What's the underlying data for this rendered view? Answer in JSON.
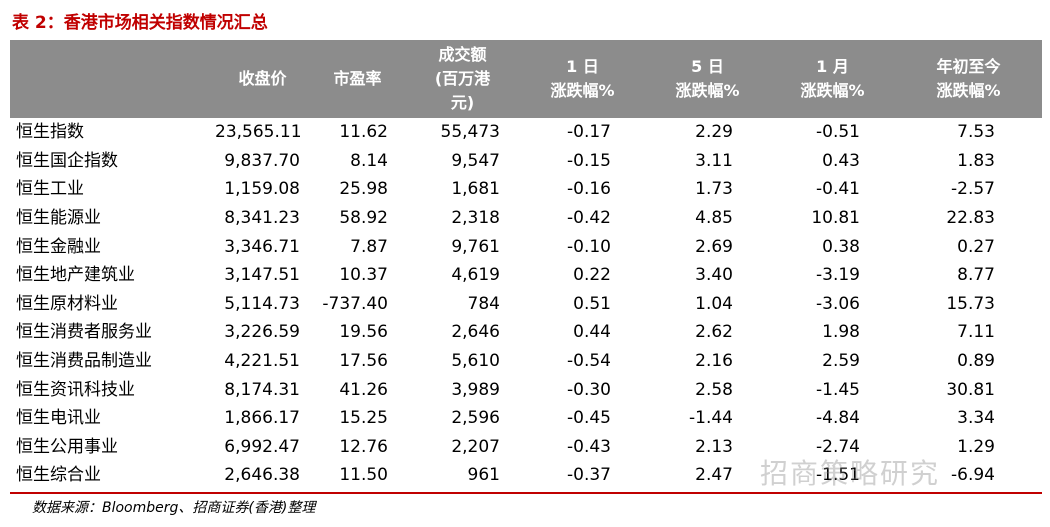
{
  "title": "表 2：香港市场相关指数情况汇总",
  "table": {
    "header": [
      [
        ""
      ],
      [
        "收盘价"
      ],
      [
        "市盈率"
      ],
      [
        "成交额",
        "(百万港",
        "元)"
      ],
      [
        "1 日",
        "涨跌幅%"
      ],
      [
        "5 日",
        "涨跌幅%"
      ],
      [
        "1 月",
        "涨跌幅%"
      ],
      [
        "年初至今",
        "涨跌幅%"
      ]
    ],
    "rows": [
      [
        "恒生指数",
        "23,565.11",
        "11.62",
        "55,473",
        "-0.17",
        "2.29",
        "-0.51",
        "7.53"
      ],
      [
        "恒生国企指数",
        "9,837.70",
        "8.14",
        "9,547",
        "-0.15",
        "3.11",
        "0.43",
        "1.83"
      ],
      [
        "恒生工业",
        "1,159.08",
        "25.98",
        "1,681",
        "-0.16",
        "1.73",
        "-0.41",
        "-2.57"
      ],
      [
        "恒生能源业",
        "8,341.23",
        "58.92",
        "2,318",
        "-0.42",
        "4.85",
        "10.81",
        "22.83"
      ],
      [
        "恒生金融业",
        "3,346.71",
        "7.87",
        "9,761",
        "-0.10",
        "2.69",
        "0.38",
        "0.27"
      ],
      [
        "恒生地产建筑业",
        "3,147.51",
        "10.37",
        "4,619",
        "0.22",
        "3.40",
        "-3.19",
        "8.77"
      ],
      [
        "恒生原材料业",
        "5,114.73",
        "-737.40",
        "784",
        "0.51",
        "1.04",
        "-3.06",
        "15.73"
      ],
      [
        "恒生消费者服务业",
        "3,226.59",
        "19.56",
        "2,646",
        "0.44",
        "2.62",
        "1.98",
        "7.11"
      ],
      [
        "恒生消费品制造业",
        "4,221.51",
        "17.56",
        "5,610",
        "-0.54",
        "2.16",
        "2.59",
        "0.89"
      ],
      [
        "恒生资讯科技业",
        "8,174.31",
        "41.26",
        "3,989",
        "-0.30",
        "2.58",
        "-1.45",
        "30.81"
      ],
      [
        "恒生电讯业",
        "1,866.17",
        "15.25",
        "2,596",
        "-0.45",
        "-1.44",
        "-4.84",
        "3.34"
      ],
      [
        "恒生公用事业",
        "6,992.47",
        "12.76",
        "2,207",
        "-0.43",
        "2.13",
        "-2.74",
        "1.29"
      ],
      [
        "恒生综合业",
        "2,646.38",
        "11.50",
        "961",
        "-0.37",
        "2.47",
        "-1.51",
        "-6.94"
      ]
    ]
  },
  "source": "数据来源：Bloomberg、招商证券(香港)整理",
  "watermark": "招商策略研究"
}
